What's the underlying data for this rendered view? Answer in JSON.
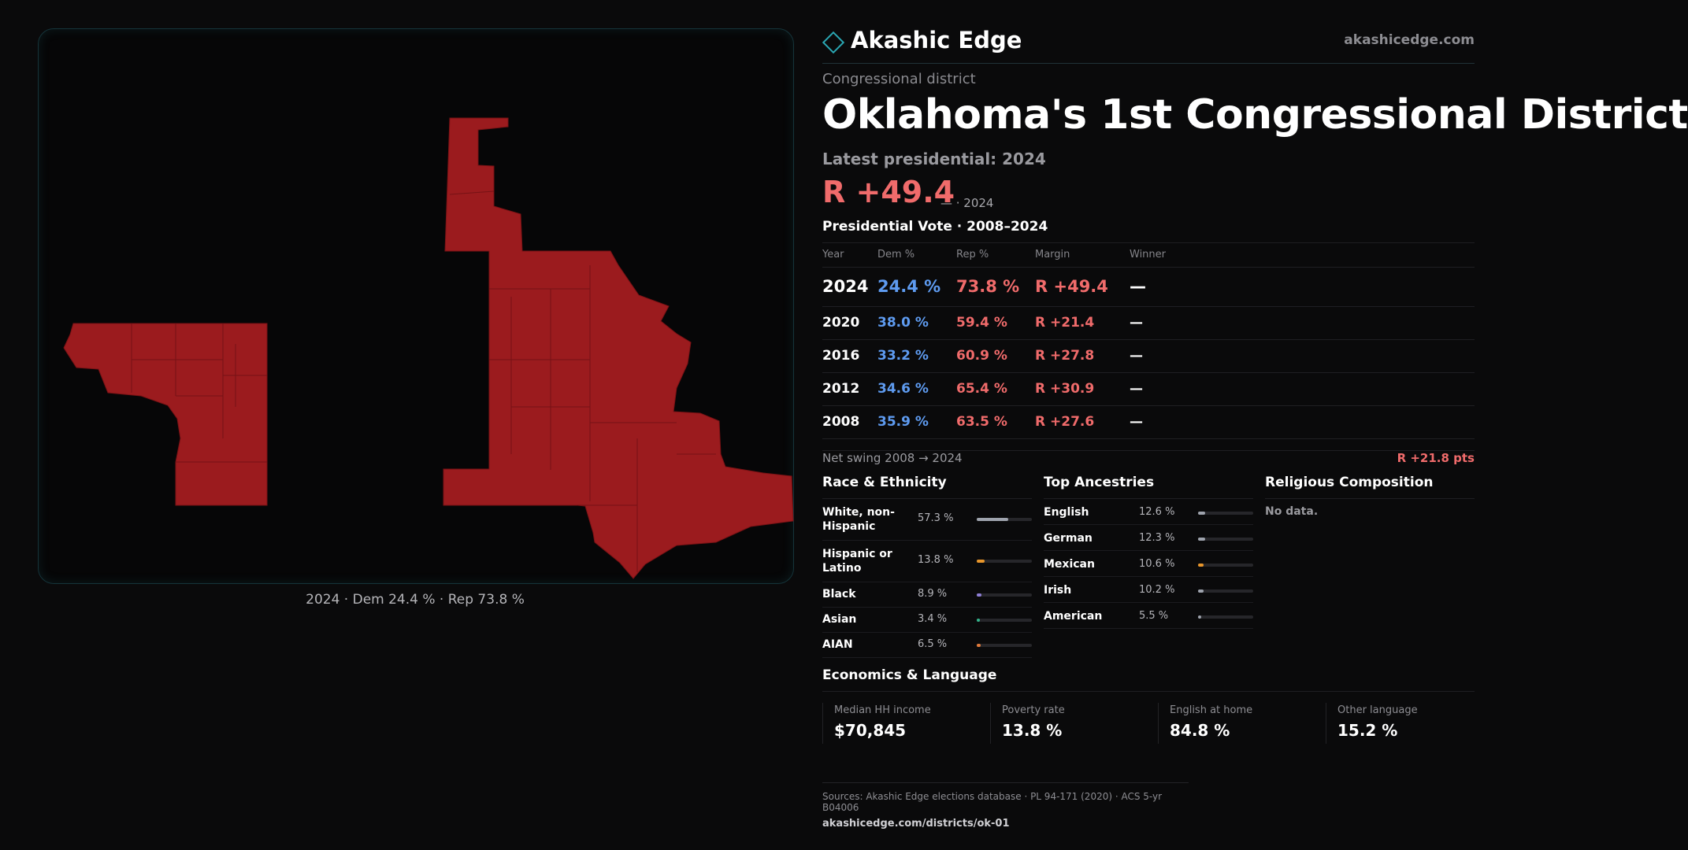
{
  "brand": {
    "name": "Akashic Edge",
    "url": "akashicedge.com",
    "accent": "#2aa7b3"
  },
  "page": {
    "kicker": "Congressional district",
    "title": "Oklahoma's 1st Congressional District",
    "latest_label": "Latest presidential: 2024",
    "margin_big": "R +49.4",
    "margin_note": "— · 2024"
  },
  "map": {
    "caption": "2024 · Dem 24.4 % · Rep 73.8 %",
    "fill_color": "#9b1b1e"
  },
  "vote_table": {
    "title": "Presidential Vote · 2008–2024",
    "headers": {
      "year": "Year",
      "dem": "Dem %",
      "rep": "Rep %",
      "margin": "Margin",
      "winner": "Winner"
    },
    "rows": [
      {
        "year": "2024",
        "dem": "24.4 %",
        "rep": "73.8 %",
        "margin": "R +49.4",
        "winner": "—"
      },
      {
        "year": "2020",
        "dem": "38.0 %",
        "rep": "59.4 %",
        "margin": "R +21.4",
        "winner": "—"
      },
      {
        "year": "2016",
        "dem": "33.2 %",
        "rep": "60.9 %",
        "margin": "R +27.8",
        "winner": "—"
      },
      {
        "year": "2012",
        "dem": "34.6 %",
        "rep": "65.4 %",
        "margin": "R +30.9",
        "winner": "—"
      },
      {
        "year": "2008",
        "dem": "35.9 %",
        "rep": "63.5 %",
        "margin": "R +27.6",
        "winner": "—"
      }
    ]
  },
  "swing": {
    "label": "Net swing 2008 → 2024",
    "value": "R +21.8 pts"
  },
  "race": {
    "title": "Race & Ethnicity",
    "items": [
      {
        "label": "White, non-Hispanic",
        "pct": "57.3 %",
        "value": 57.3,
        "color": "#9ea3ad"
      },
      {
        "label": "Hispanic or Latino",
        "pct": "13.8 %",
        "value": 13.8,
        "color": "#e8962b"
      },
      {
        "label": "Black",
        "pct": "8.9 %",
        "value": 8.9,
        "color": "#8f7fd6"
      },
      {
        "label": "Asian",
        "pct": "3.4 %",
        "value": 3.4,
        "color": "#33b38a"
      },
      {
        "label": "AIAN",
        "pct": "6.5 %",
        "value": 6.5,
        "color": "#e07a3a"
      }
    ]
  },
  "ancestry": {
    "title": "Top Ancestries",
    "items": [
      {
        "label": "English",
        "pct": "12.6 %",
        "value": 12.6,
        "color": "#9ea3ad"
      },
      {
        "label": "German",
        "pct": "12.3 %",
        "value": 12.3,
        "color": "#9ea3ad"
      },
      {
        "label": "Mexican",
        "pct": "10.6 %",
        "value": 10.6,
        "color": "#e8962b"
      },
      {
        "label": "Irish",
        "pct": "10.2 %",
        "value": 10.2,
        "color": "#9ea3ad"
      },
      {
        "label": "American",
        "pct": "5.5 %",
        "value": 5.5,
        "color": "#9ea3ad"
      }
    ]
  },
  "religion": {
    "title": "Religious Composition",
    "empty": "No data."
  },
  "economics": {
    "title": "Economics & Language",
    "items": [
      {
        "label": "Median HH income",
        "value": "$70,845"
      },
      {
        "label": "Poverty rate",
        "value": "13.8 %"
      },
      {
        "label": "English at home",
        "value": "84.8 %"
      },
      {
        "label": "Other language",
        "value": "15.2 %"
      }
    ]
  },
  "sources": {
    "text": "Sources: Akashic Edge elections database · PL 94-171 (2020) · ACS 5-yr B04006",
    "url": "akashicedge.com/districts/ok-01"
  }
}
